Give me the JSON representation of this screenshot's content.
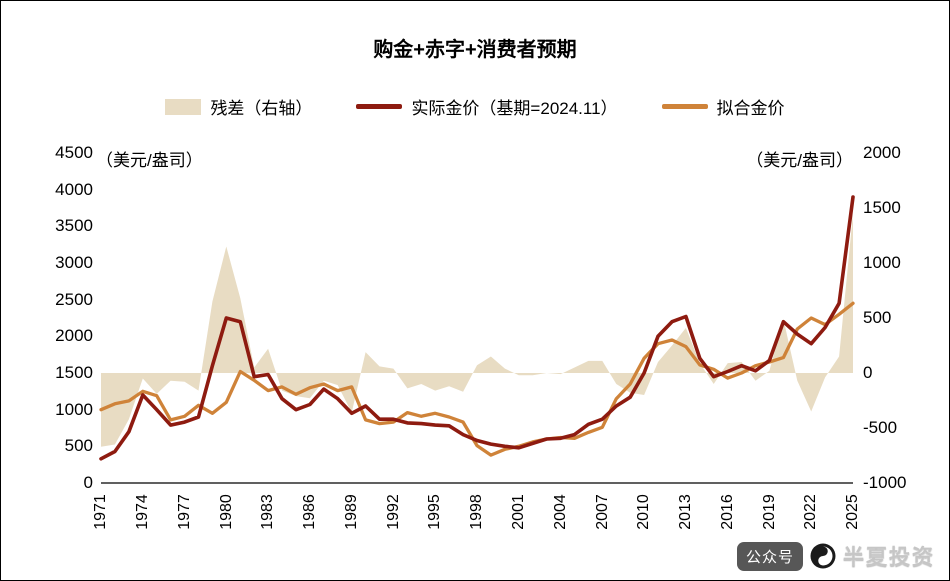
{
  "title": "购金+赤字+消费者预期",
  "legend": [
    {
      "label": "残差（右轴）",
      "type": "area",
      "color": "#e8dcc3"
    },
    {
      "label": "实际金价（基期=2024.11）",
      "type": "line",
      "color": "#8e1b10"
    },
    {
      "label": "拟合金价",
      "type": "line",
      "color": "#cf8339"
    }
  ],
  "left_axis_unit": "（美元/盎司）",
  "right_axis_unit": "（美元/盎司）",
  "watermark": {
    "badge": "公众号",
    "name": "半夏投资"
  },
  "chart_data": {
    "type": "line+area",
    "title": "购金+赤字+消费者预期",
    "x": [
      1971,
      1972,
      1973,
      1974,
      1975,
      1976,
      1977,
      1978,
      1979,
      1980,
      1981,
      1982,
      1983,
      1984,
      1985,
      1986,
      1987,
      1988,
      1989,
      1990,
      1991,
      1992,
      1993,
      1994,
      1995,
      1996,
      1997,
      1998,
      1999,
      2000,
      2001,
      2002,
      2003,
      2004,
      2005,
      2006,
      2007,
      2008,
      2009,
      2010,
      2011,
      2012,
      2013,
      2014,
      2015,
      2016,
      2017,
      2018,
      2019,
      2020,
      2021,
      2022,
      2023,
      2024,
      2025
    ],
    "x_tick_labels": [
      "1971",
      "1974",
      "1977",
      "1980",
      "1983",
      "1986",
      "1989",
      "1992",
      "1995",
      "1998",
      "2001",
      "2004",
      "2007",
      "2010",
      "2013",
      "2016",
      "2019",
      "2022",
      "2025"
    ],
    "left_axis": {
      "min": 0,
      "max": 4500,
      "ticks": [
        4500,
        4000,
        3500,
        3000,
        2500,
        2000,
        1500,
        1000,
        500,
        0
      ],
      "unit": "（美元/盎司）"
    },
    "right_axis": {
      "min": -1000,
      "max": 2000,
      "ticks": [
        2000,
        1500,
        1000,
        500,
        0,
        -500,
        -1000
      ],
      "unit": "（美元/盎司）"
    },
    "grid": false,
    "legend_position": "top",
    "series": [
      {
        "name": "残差（右轴）",
        "axis": "right",
        "type": "area",
        "color": "#e8dcc3",
        "values": [
          -670,
          -650,
          -420,
          -50,
          -190,
          -70,
          -80,
          -160,
          650,
          1150,
          680,
          50,
          220,
          -160,
          -210,
          -230,
          -70,
          -110,
          -360,
          190,
          60,
          40,
          -140,
          -100,
          -160,
          -120,
          -170,
          70,
          150,
          40,
          -20,
          -20,
          0,
          -10,
          50,
          110,
          110,
          -100,
          -180,
          -200,
          100,
          250,
          410,
          90,
          -100,
          90,
          100,
          -70,
          20,
          490,
          -70,
          -350,
          -40,
          150,
          1450
        ]
      },
      {
        "name": "实际金价（基期=2024.11）",
        "axis": "left",
        "type": "line",
        "color": "#8e1b10",
        "values": [
          330,
          430,
          700,
          1200,
          1000,
          790,
          830,
          900,
          1600,
          2250,
          2200,
          1450,
          1480,
          1150,
          1000,
          1070,
          1280,
          1150,
          950,
          1050,
          870,
          870,
          820,
          810,
          790,
          780,
          660,
          580,
          530,
          500,
          480,
          540,
          600,
          610,
          660,
          800,
          870,
          1050,
          1170,
          1500,
          2000,
          2200,
          2270,
          1700,
          1450,
          1520,
          1600,
          1530,
          1670,
          2200,
          2030,
          1900,
          2120,
          2450,
          3900
        ]
      },
      {
        "name": "拟合金价",
        "axis": "left",
        "type": "line",
        "color": "#cf8339",
        "values": [
          1000,
          1080,
          1120,
          1250,
          1190,
          860,
          910,
          1060,
          950,
          1100,
          1520,
          1400,
          1260,
          1310,
          1210,
          1300,
          1350,
          1260,
          1310,
          860,
          810,
          830,
          960,
          910,
          950,
          900,
          830,
          510,
          380,
          460,
          500,
          560,
          600,
          620,
          610,
          690,
          760,
          1150,
          1350,
          1700,
          1900,
          1950,
          1860,
          1610,
          1550,
          1430,
          1500,
          1600,
          1650,
          1710,
          2100,
          2250,
          2160,
          2300,
          2450
        ]
      }
    ]
  }
}
